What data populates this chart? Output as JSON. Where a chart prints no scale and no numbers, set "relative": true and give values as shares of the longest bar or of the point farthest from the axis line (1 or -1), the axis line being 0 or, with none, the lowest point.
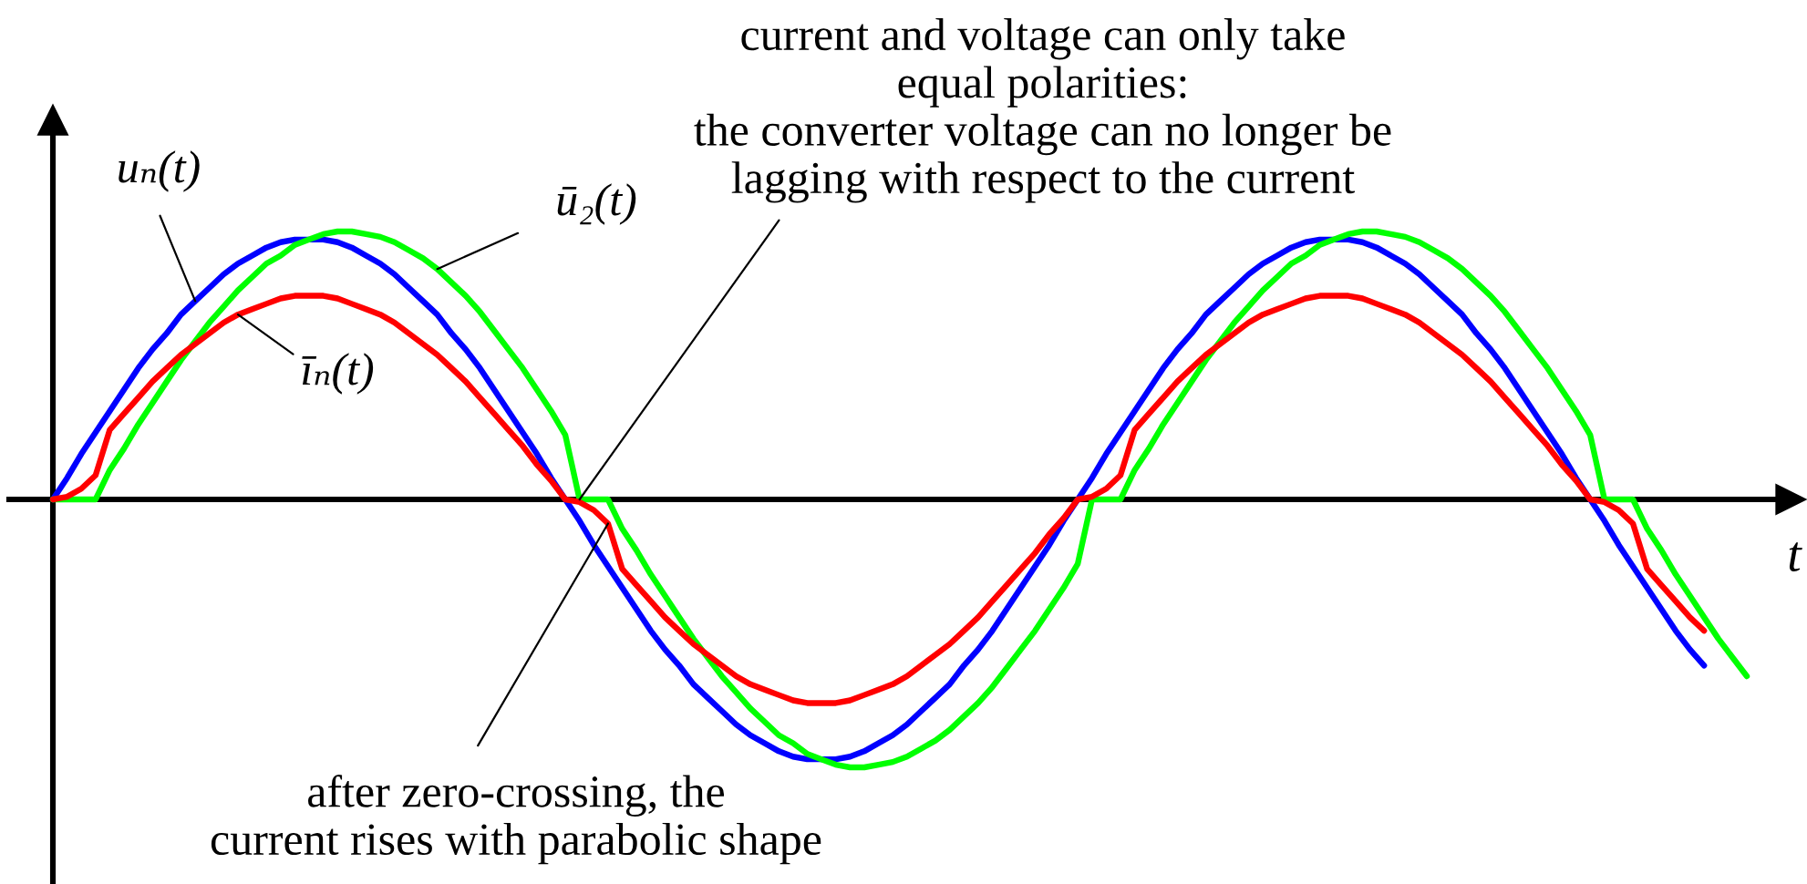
{
  "chart_data": {
    "type": "line",
    "relative": true,
    "xlabel": "t",
    "categories": [
      null,
      null,
      null,
      null,
      null,
      null,
      null,
      null,
      null,
      null,
      null,
      null,
      null,
      null,
      null,
      null,
      null,
      null,
      null,
      null,
      null,
      null,
      null,
      null,
      null,
      null,
      null,
      null,
      null,
      null,
      null,
      null,
      null,
      null,
      null,
      null,
      null,
      null,
      null,
      null,
      null,
      null,
      null,
      null,
      null,
      null,
      null,
      null,
      null,
      null,
      null,
      null,
      null,
      null,
      null,
      null,
      null,
      null,
      null,
      null,
      null,
      null,
      null,
      null,
      null,
      null,
      null,
      null,
      null,
      null,
      null,
      null,
      null,
      null,
      null,
      null,
      null,
      null,
      null,
      null,
      null,
      null,
      null,
      null,
      null,
      null,
      null,
      null,
      null,
      null,
      null,
      null,
      null,
      null,
      null,
      null,
      null,
      null,
      null,
      null,
      null,
      null,
      null,
      null,
      null,
      null,
      null,
      null,
      null,
      null,
      null,
      null,
      null,
      null,
      null,
      null,
      null,
      null,
      null,
      null
    ],
    "series": [
      {
        "name": "uₙ(t)",
        "color": "#0000ff",
        "values": [
          0,
          0.08,
          0.17,
          0.25,
          0.33,
          0.41,
          0.49,
          0.56,
          0.62,
          0.69,
          0.74,
          0.79,
          0.84,
          0.88,
          0.91,
          0.94,
          0.96,
          0.97,
          0.97,
          0.97,
          0.96,
          0.94,
          0.91,
          0.88,
          0.84,
          0.79,
          0.74,
          0.69,
          0.62,
          0.56,
          0.49,
          0.41,
          0.33,
          0.25,
          0.17,
          0.08,
          0,
          -0.08,
          -0.17,
          -0.25,
          -0.33,
          -0.41,
          -0.49,
          -0.56,
          -0.62,
          -0.69,
          -0.74,
          -0.79,
          -0.84,
          -0.88,
          -0.91,
          -0.94,
          -0.96,
          -0.97,
          -0.97,
          -0.97,
          -0.96,
          -0.94,
          -0.91,
          -0.88,
          -0.84,
          -0.79,
          -0.74,
          -0.69,
          -0.62,
          -0.56,
          -0.49,
          -0.41,
          -0.33,
          -0.25,
          -0.17,
          -0.08,
          0,
          0.08,
          0.17,
          0.25,
          0.33,
          0.41,
          0.49,
          0.56,
          0.62,
          0.69,
          0.74,
          0.79,
          0.84,
          0.88,
          0.91,
          0.94,
          0.96,
          0.97,
          0.97,
          0.97,
          0.96,
          0.94,
          0.91,
          0.88,
          0.84,
          0.79,
          0.74,
          0.69,
          0.62,
          0.56,
          0.49,
          0.41,
          0.33,
          0.25,
          0.17,
          0.08,
          0,
          -0.08,
          -0.17,
          -0.25,
          -0.33,
          -0.41,
          -0.49,
          -0.56,
          -0.62,
          null,
          null,
          null
        ]
      },
      {
        "name": "ū₂(t)",
        "color": "#00ff00",
        "values": [
          0,
          0,
          0,
          0,
          0.11,
          0.19,
          0.28,
          0.36,
          0.44,
          0.52,
          0.59,
          0.66,
          0.72,
          0.78,
          0.83,
          0.88,
          0.91,
          0.95,
          0.97,
          0.99,
          1.0,
          1.0,
          0.99,
          0.98,
          0.96,
          0.93,
          0.9,
          0.86,
          0.81,
          0.76,
          0.7,
          0.63,
          0.56,
          0.49,
          0.41,
          0.33,
          0.24,
          0,
          0,
          0,
          -0.11,
          -0.19,
          -0.28,
          -0.36,
          -0.44,
          -0.52,
          -0.59,
          -0.66,
          -0.72,
          -0.78,
          -0.83,
          -0.88,
          -0.91,
          -0.95,
          -0.97,
          -0.99,
          -1.0,
          -1.0,
          -0.99,
          -0.98,
          -0.96,
          -0.93,
          -0.9,
          -0.86,
          -0.81,
          -0.76,
          -0.7,
          -0.63,
          -0.56,
          -0.49,
          -0.41,
          -0.33,
          -0.24,
          0,
          0,
          0,
          0.11,
          0.19,
          0.28,
          0.36,
          0.44,
          0.52,
          0.59,
          0.66,
          0.72,
          0.78,
          0.83,
          0.88,
          0.91,
          0.95,
          0.97,
          0.99,
          1.0,
          1.0,
          0.99,
          0.98,
          0.96,
          0.93,
          0.9,
          0.86,
          0.81,
          0.76,
          0.7,
          0.63,
          0.56,
          0.49,
          0.41,
          0.33,
          0.24,
          0,
          0,
          0,
          -0.11,
          -0.19,
          -0.28,
          -0.36,
          -0.44,
          -0.52,
          -0.59,
          -0.66
        ]
      },
      {
        "name": "īₙ(t)",
        "color": "#ff0000",
        "values": [
          0,
          0.01,
          0.04,
          0.09,
          0.26,
          0.32,
          0.38,
          0.44,
          0.49,
          0.54,
          0.58,
          0.62,
          0.66,
          0.69,
          0.71,
          0.73,
          0.75,
          0.76,
          0.76,
          0.76,
          0.75,
          0.73,
          0.71,
          0.69,
          0.66,
          0.62,
          0.58,
          0.54,
          0.49,
          0.44,
          0.38,
          0.32,
          0.26,
          0.2,
          0.13,
          0.07,
          0,
          -0.01,
          -0.04,
          -0.09,
          -0.26,
          -0.32,
          -0.38,
          -0.44,
          -0.49,
          -0.54,
          -0.58,
          -0.62,
          -0.66,
          -0.69,
          -0.71,
          -0.73,
          -0.75,
          -0.76,
          -0.76,
          -0.76,
          -0.75,
          -0.73,
          -0.71,
          -0.69,
          -0.66,
          -0.62,
          -0.58,
          -0.54,
          -0.49,
          -0.44,
          -0.38,
          -0.32,
          -0.26,
          -0.2,
          -0.13,
          -0.07,
          0,
          0.01,
          0.04,
          0.09,
          0.26,
          0.32,
          0.38,
          0.44,
          0.49,
          0.54,
          0.58,
          0.62,
          0.66,
          0.69,
          0.71,
          0.73,
          0.75,
          0.76,
          0.76,
          0.76,
          0.75,
          0.73,
          0.71,
          0.69,
          0.66,
          0.62,
          0.58,
          0.54,
          0.49,
          0.44,
          0.38,
          0.32,
          0.26,
          0.2,
          0.13,
          0.07,
          0,
          -0.01,
          -0.04,
          -0.09,
          -0.26,
          -0.32,
          -0.38,
          -0.44,
          -0.49,
          null,
          null,
          null
        ]
      }
    ],
    "annotations": [
      "current and voltage can only take\nequal polarities:\nthe converter voltage can no longer be\nlagging with respect to the current",
      "after zero-crossing, the\ncurrent rises with parabolic shape"
    ]
  }
}
